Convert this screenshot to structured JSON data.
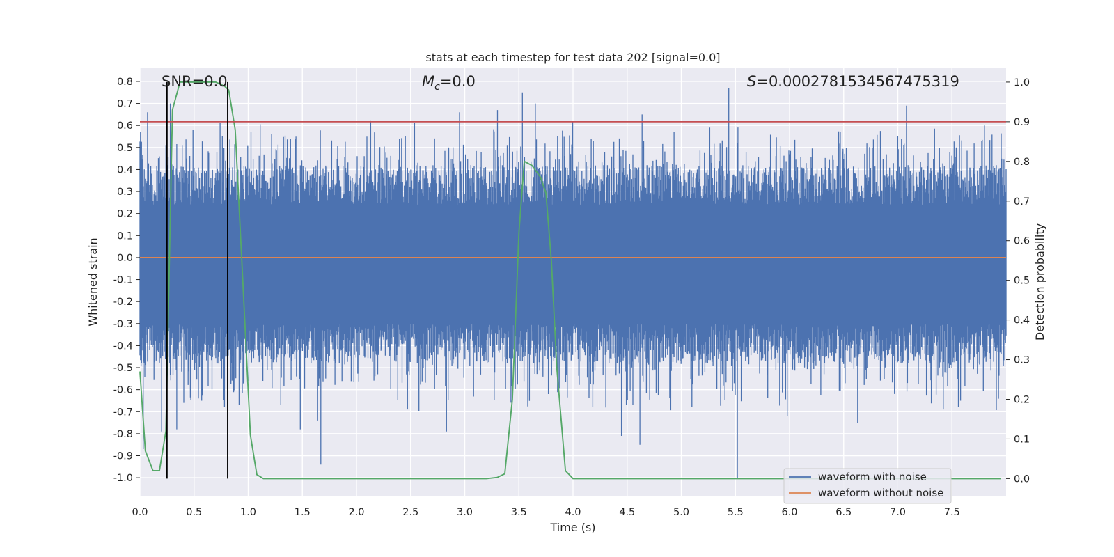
{
  "chart_data": {
    "type": "line",
    "title": "stats at each timestep for test data 202 [signal=0.0]",
    "xlabel": "Time (s)",
    "ylabel": "Whitened strain",
    "y2label": "Detection probability",
    "xlim": [
      0.0,
      8.0
    ],
    "ylim": [
      -1.085,
      0.86
    ],
    "y2lim": [
      -0.045,
      1.035
    ],
    "xticks": [
      "0.0",
      "0.5",
      "1.0",
      "1.5",
      "2.0",
      "2.5",
      "3.0",
      "3.5",
      "4.0",
      "4.5",
      "5.0",
      "5.5",
      "6.0",
      "6.5",
      "7.0",
      "7.5"
    ],
    "yticks": [
      "0.8",
      "0.7",
      "0.6",
      "0.5",
      "0.4",
      "0.3",
      "0.2",
      "0.1",
      "0.0",
      "-0.1",
      "-0.2",
      "-0.3",
      "-0.4",
      "-0.5",
      "-0.6",
      "-0.7",
      "-0.8",
      "-0.9",
      "-1.0"
    ],
    "y2ticks": [
      "1.0",
      "0.9",
      "0.8",
      "0.7",
      "0.6",
      "0.5",
      "0.4",
      "0.3",
      "0.2",
      "0.1",
      "0.0"
    ],
    "grid": true,
    "legend_position": "lower-right",
    "annotations": {
      "snr": "SNR=0.0",
      "mc_symbol": "M",
      "mc_sub": "c",
      "mc_value": "=0.0",
      "s_symbol": "S",
      "s_value": "=0.0002781534567475319"
    },
    "threshold_y2": 0.9,
    "vlines_x": [
      0.25,
      0.81
    ],
    "series": [
      {
        "name": "waveform with noise",
        "color": "#4C72B0",
        "description_stats": {
          "n_samples": 1600,
          "core_low": -0.3,
          "core_high": 0.24,
          "seed": 202
        },
        "notable_spikes": [
          {
            "x": 0.03,
            "y": -0.87
          },
          {
            "x": 0.07,
            "y": 0.66
          },
          {
            "x": 0.2,
            "y": -0.79
          },
          {
            "x": 0.28,
            "y": 0.7
          },
          {
            "x": 0.34,
            "y": -0.78
          },
          {
            "x": 0.49,
            "y": 0.58
          },
          {
            "x": 0.57,
            "y": -0.65
          },
          {
            "x": 0.74,
            "y": 0.61
          },
          {
            "x": 0.78,
            "y": -0.68
          },
          {
            "x": 1.3,
            "y": -0.67
          },
          {
            "x": 1.48,
            "y": -0.78
          },
          {
            "x": 1.64,
            "y": -0.74
          },
          {
            "x": 1.67,
            "y": -0.94
          },
          {
            "x": 2.13,
            "y": 0.62
          },
          {
            "x": 2.47,
            "y": -0.69
          },
          {
            "x": 2.83,
            "y": -0.79
          },
          {
            "x": 2.95,
            "y": 0.66
          },
          {
            "x": 3.3,
            "y": 0.67
          },
          {
            "x": 3.53,
            "y": 0.75
          },
          {
            "x": 3.65,
            "y": 0.7
          },
          {
            "x": 3.77,
            "y": -0.62
          },
          {
            "x": 4.37,
            "y": 0.03
          },
          {
            "x": 4.45,
            "y": -0.81
          },
          {
            "x": 4.62,
            "y": -0.85
          },
          {
            "x": 4.64,
            "y": 0.65
          },
          {
            "x": 5.1,
            "y": -0.68
          },
          {
            "x": 5.44,
            "y": 0.77
          },
          {
            "x": 5.52,
            "y": -1.0
          },
          {
            "x": 5.98,
            "y": -0.72
          },
          {
            "x": 6.63,
            "y": -0.75
          },
          {
            "x": 7.08,
            "y": 0.69
          },
          {
            "x": 7.42,
            "y": -0.69
          },
          {
            "x": 7.58,
            "y": -0.65
          },
          {
            "x": 7.8,
            "y": 0.6
          }
        ]
      },
      {
        "name": "waveform without noise",
        "color": "#DD8452",
        "x": [
          0.0,
          8.0
        ],
        "y": [
          0.0,
          0.0
        ]
      },
      {
        "axis": "right",
        "color": "#55A868",
        "x": [
          0.0,
          0.05,
          0.12,
          0.18,
          0.24,
          0.3,
          0.37,
          0.44,
          0.55,
          0.7,
          0.78,
          0.82,
          0.88,
          0.95,
          1.02,
          1.08,
          1.14,
          1.2,
          2.0,
          3.2,
          3.3,
          3.37,
          3.44,
          3.5,
          3.55,
          3.62,
          3.7,
          3.75,
          3.8,
          3.85,
          3.93,
          4.0,
          4.1,
          7.95
        ],
        "y": [
          0.27,
          0.07,
          0.02,
          0.02,
          0.12,
          0.93,
          1.0,
          1.0,
          1.0,
          1.0,
          0.99,
          0.98,
          0.88,
          0.5,
          0.11,
          0.01,
          0.0,
          0.0,
          0.0,
          0.0,
          0.003,
          0.012,
          0.2,
          0.62,
          0.8,
          0.79,
          0.76,
          0.72,
          0.55,
          0.28,
          0.02,
          0.0,
          0.0,
          0.0
        ]
      }
    ]
  }
}
